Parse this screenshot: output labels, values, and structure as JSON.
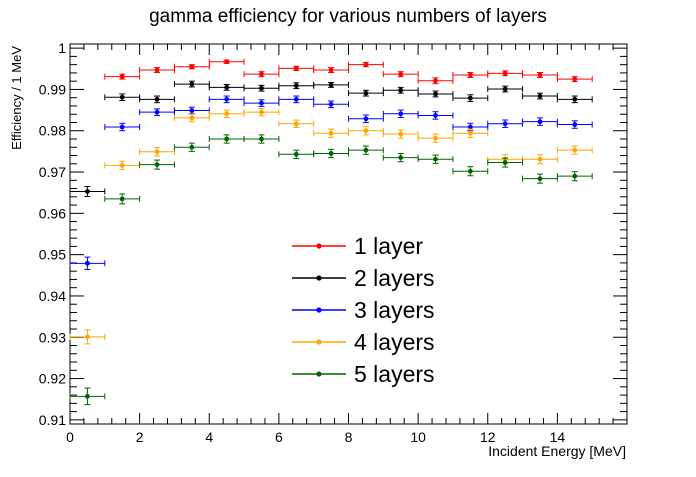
{
  "chart_data": {
    "type": "scatter",
    "title": "gamma efficiency for various numbers of layers",
    "xlabel": "Incident Energy [MeV]",
    "ylabel": "Efficiency / 1 MeV",
    "xlim": [
      0,
      16
    ],
    "ylim": [
      0.909,
      1.001
    ],
    "x_ticks": [
      0,
      2,
      4,
      6,
      8,
      10,
      12,
      14
    ],
    "y_ticks": [
      0.91,
      0.92,
      0.93,
      0.94,
      0.95,
      0.96,
      0.97,
      0.98,
      0.99,
      1
    ],
    "y_tick_labels": [
      "0.91",
      "0.92",
      "0.93",
      "0.94",
      "0.95",
      "0.96",
      "0.97",
      "0.98",
      "0.99",
      "1"
    ],
    "x_tick_labels": [
      "0",
      "2",
      "4",
      "6",
      "8",
      "10",
      "12",
      "14"
    ],
    "legend_position": "center",
    "grid": false,
    "x_bin_half_width": 0.5,
    "series": [
      {
        "name": "1 layer",
        "color": "#ff0000",
        "x": [
          1.5,
          2.5,
          3.5,
          4.5,
          5.5,
          6.5,
          7.5,
          8.5,
          9.5,
          10.5,
          11.5,
          12.5,
          13.5,
          14.5
        ],
        "y": [
          0.9931,
          0.9947,
          0.9955,
          0.9967,
          0.9937,
          0.9951,
          0.9947,
          0.996,
          0.9937,
          0.9921,
          0.9935,
          0.9939,
          0.9935,
          0.9925
        ],
        "yerr": [
          0.0006,
          0.0006,
          0.0005,
          0.0004,
          0.0006,
          0.0005,
          0.0006,
          0.0005,
          0.0006,
          0.0007,
          0.0006,
          0.0006,
          0.0006,
          0.0006
        ]
      },
      {
        "name": "2 layers",
        "color": "#000000",
        "x": [
          0.5,
          1.5,
          2.5,
          3.5,
          4.5,
          5.5,
          6.5,
          7.5,
          8.5,
          9.5,
          10.5,
          11.5,
          12.5,
          13.5,
          14.5
        ],
        "y": [
          0.9653,
          0.9881,
          0.9876,
          0.9913,
          0.9905,
          0.9903,
          0.9909,
          0.9911,
          0.9891,
          0.9898,
          0.9889,
          0.9879,
          0.9901,
          0.9884,
          0.9876
        ],
        "yerr": [
          0.0012,
          0.0008,
          0.0008,
          0.0007,
          0.0007,
          0.0007,
          0.0007,
          0.0006,
          0.0007,
          0.0007,
          0.0007,
          0.0008,
          0.0007,
          0.0007,
          0.0008
        ]
      },
      {
        "name": "3 layers",
        "color": "#0000ff",
        "x": [
          0.5,
          1.5,
          2.5,
          3.5,
          4.5,
          5.5,
          6.5,
          7.5,
          8.5,
          9.5,
          10.5,
          11.5,
          12.5,
          13.5,
          14.5
        ],
        "y": [
          0.9479,
          0.9809,
          0.9845,
          0.9849,
          0.9876,
          0.9867,
          0.9876,
          0.9864,
          0.9829,
          0.9841,
          0.9837,
          0.9809,
          0.9817,
          0.9822,
          0.9815
        ],
        "yerr": [
          0.0015,
          0.0009,
          0.0008,
          0.0008,
          0.0008,
          0.0008,
          0.0008,
          0.0008,
          0.0009,
          0.0009,
          0.0009,
          0.0009,
          0.0009,
          0.0009,
          0.0009
        ]
      },
      {
        "name": "4 layers",
        "color": "#ffa500",
        "x": [
          0.5,
          1.5,
          2.5,
          3.5,
          4.5,
          5.5,
          6.5,
          7.5,
          8.5,
          9.5,
          10.5,
          11.5,
          12.5,
          13.5,
          14.5
        ],
        "y": [
          0.9301,
          0.9716,
          0.9749,
          0.9831,
          0.9841,
          0.9845,
          0.9817,
          0.9794,
          0.98,
          0.9792,
          0.9782,
          0.9794,
          0.9731,
          0.9731,
          0.9753
        ],
        "yerr": [
          0.0017,
          0.001,
          0.001,
          0.0009,
          0.0009,
          0.0009,
          0.0009,
          0.001,
          0.001,
          0.001,
          0.001,
          0.001,
          0.0011,
          0.0011,
          0.001
        ]
      },
      {
        "name": "5 layers",
        "color": "#006400",
        "x": [
          0.5,
          1.5,
          2.5,
          3.5,
          4.5,
          5.5,
          6.5,
          7.5,
          8.5,
          9.5,
          10.5,
          11.5,
          12.5,
          13.5,
          14.5
        ],
        "y": [
          0.9157,
          0.9635,
          0.9718,
          0.976,
          0.978,
          0.978,
          0.9743,
          0.9745,
          0.9753,
          0.9735,
          0.9731,
          0.9702,
          0.9723,
          0.9684,
          0.969
        ],
        "yerr": [
          0.002,
          0.0012,
          0.0011,
          0.001,
          0.001,
          0.001,
          0.001,
          0.001,
          0.001,
          0.001,
          0.001,
          0.0011,
          0.0011,
          0.0011,
          0.0011
        ]
      }
    ]
  }
}
